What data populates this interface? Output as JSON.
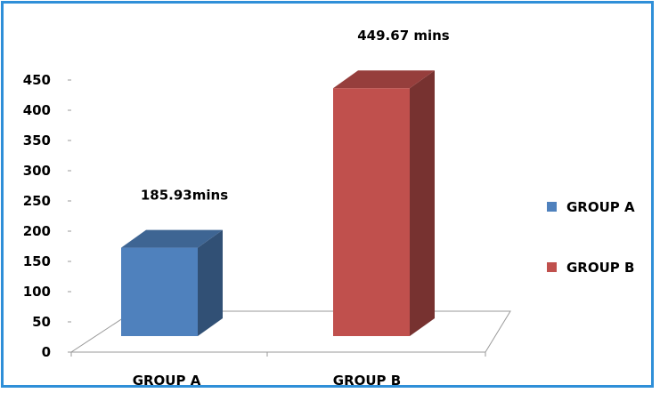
{
  "chart_data": {
    "type": "bar",
    "categories": [
      "GROUP A",
      "GROUP B"
    ],
    "values": [
      185.93,
      449.67
    ],
    "data_labels": [
      "185.93mins",
      "449.67 mins"
    ],
    "colors": [
      "#4f81bd",
      "#c0504d"
    ],
    "ylim": [
      0,
      450
    ],
    "yticks": [
      0,
      50,
      100,
      150,
      200,
      250,
      300,
      350,
      400,
      450
    ],
    "legend": {
      "position": "right",
      "entries": [
        "GROUP A",
        "GROUP B"
      ]
    },
    "grid": false,
    "style": "3d"
  }
}
